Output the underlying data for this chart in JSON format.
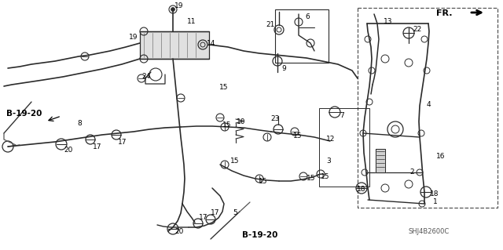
{
  "bg_color": "#ffffff",
  "diagram_code": "SHJ4B2600C",
  "fr_label": "FR.",
  "b1920_label": "B-19-20",
  "line_color": "#2a2a2a",
  "text_color": "#000000",
  "figsize": [
    6.4,
    3.19
  ],
  "dpi": 100,
  "image_b64": ""
}
